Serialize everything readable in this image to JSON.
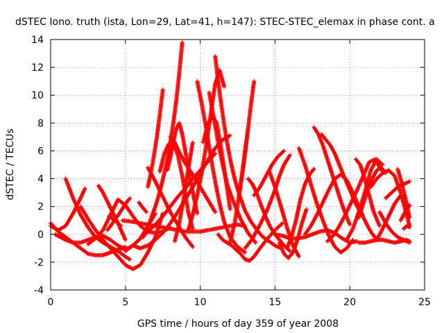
{
  "chart_data": {
    "type": "scatter",
    "title": "dSTEC Iono. truth (ista, Lon=29, Lat=41, h=147): STEC-STEC_elemax in phase cont. a",
    "xlabel": "GPS time / hours of day 359 of year 2008",
    "ylabel": "dSTEC  / TECUs",
    "xlim": [
      0,
      25
    ],
    "ylim": [
      -4,
      14
    ],
    "xticks": [
      0,
      5,
      10,
      15,
      20,
      25
    ],
    "yticks": [
      -4,
      -2,
      0,
      2,
      4,
      6,
      8,
      10,
      12,
      14
    ],
    "grid": true,
    "marker": "+",
    "color": "#ff0000",
    "series": [
      {
        "x": [
          0.0,
          0.5,
          1.0,
          1.5,
          2.0,
          2.5,
          3.0,
          3.5,
          4.0,
          4.5,
          5.0
        ],
        "values": [
          0.8,
          0.2,
          -0.2,
          -0.6,
          -1.0,
          -1.4,
          -1.5,
          -1.5,
          -1.3,
          -1.1,
          -0.9
        ]
      },
      {
        "x": [
          0.0,
          0.5,
          1.0,
          1.5,
          2.0,
          2.3
        ],
        "values": [
          0.6,
          0.3,
          0.6,
          1.5,
          2.6,
          3.3
        ]
      },
      {
        "x": [
          1.0,
          1.5,
          2.0,
          2.5,
          3.0,
          3.5,
          4.0,
          4.5,
          5.0,
          5.3
        ],
        "values": [
          4.0,
          2.6,
          1.4,
          0.5,
          -0.2,
          -0.6,
          -0.9,
          -1.2,
          -1.6,
          -1.8
        ]
      },
      {
        "x": [
          0.3,
          1.0,
          1.5,
          2.0,
          2.5,
          3.0,
          3.5,
          4.0,
          4.5,
          5.0,
          5.5,
          6.0,
          6.5,
          7.0
        ],
        "values": [
          0.0,
          -0.4,
          -0.6,
          -0.6,
          -0.4,
          -0.2,
          -0.1,
          -0.4,
          -0.8,
          -1.1,
          -0.8,
          -0.3,
          0.6,
          1.5
        ]
      },
      {
        "x": [
          2.0,
          2.5,
          3.0,
          3.5,
          4.0,
          4.5,
          5.0,
          5.5,
          6.0,
          6.5,
          7.0,
          7.5
        ],
        "values": [
          2.0,
          1.1,
          0.3,
          -0.4,
          -1.0,
          -1.6,
          -2.2,
          -2.5,
          -2.2,
          -1.3,
          -0.2,
          1.5
        ]
      },
      {
        "x": [
          3.2,
          3.5,
          4.0,
          4.5,
          5.0
        ],
        "values": [
          3.5,
          3.0,
          1.9,
          0.8,
          -0.4
        ]
      },
      {
        "x": [
          2.5,
          3.0,
          3.5,
          4.0,
          4.5,
          5.0,
          5.5,
          6.0,
          6.5,
          7.0,
          7.5,
          8.0
        ],
        "values": [
          -0.7,
          -0.3,
          0.3,
          1.4,
          2.5,
          2.1,
          1.3,
          0.6,
          0.2,
          0.1,
          0.2,
          0.5
        ]
      },
      {
        "x": [
          3.8,
          4.2,
          4.6,
          5.0,
          5.3
        ],
        "values": [
          0.3,
          0.9,
          1.5,
          2.2,
          2.6
        ]
      },
      {
        "x": [
          3.9,
          4.3,
          4.7
        ],
        "values": [
          1.3,
          1.0,
          0.6
        ]
      },
      {
        "x": [
          4.8,
          5.5,
          6.0,
          6.5,
          7.0,
          7.5,
          8.0,
          8.5,
          9.0,
          9.5,
          10.0,
          10.5,
          11.0,
          11.5,
          12.0,
          12.5,
          13.0
        ],
        "values": [
          1.0,
          0.9,
          0.8,
          0.7,
          0.6,
          0.5,
          0.4,
          0.3,
          0.2,
          0.2,
          0.2,
          0.3,
          0.4,
          0.5,
          0.6,
          0.7,
          0.6
        ]
      },
      {
        "x": [
          5.0,
          5.5,
          6.0,
          6.5,
          7.0,
          7.5,
          8.0,
          8.5,
          9.0,
          9.5,
          10.0,
          10.5,
          11.0
        ],
        "values": [
          -1.2,
          -0.8,
          -0.3,
          0.2,
          0.7,
          1.3,
          2.0,
          2.7,
          3.3,
          4.0,
          4.6,
          5.2,
          5.8
        ]
      },
      {
        "x": [
          5.5,
          6.0,
          6.5,
          7.0,
          7.5,
          8.0,
          8.5,
          9.0,
          9.5,
          10.0,
          10.5,
          11.0,
          11.5,
          12.0
        ],
        "values": [
          -0.8,
          -1.0,
          -0.8,
          -0.4,
          0.1,
          0.8,
          1.6,
          2.5,
          3.4,
          4.4,
          5.3,
          6.2,
          6.8,
          7.1
        ]
      },
      {
        "x": [
          5.9,
          6.1,
          6.4
        ],
        "values": [
          2.3,
          2.0,
          1.6
        ]
      },
      {
        "x": [
          6.2,
          6.4,
          6.6,
          6.8,
          7.0,
          7.2,
          7.4,
          7.6,
          7.8,
          8.0,
          8.2,
          8.4,
          8.6,
          8.8
        ],
        "values": [
          -0.2,
          0.3,
          0.8,
          1.4,
          2.0,
          2.7,
          3.5,
          4.4,
          5.4,
          6.6,
          8.0,
          9.6,
          11.6,
          13.8
        ]
      },
      {
        "x": [
          6.5,
          6.7,
          6.9,
          7.1,
          7.3,
          7.5
        ],
        "values": [
          3.4,
          4.4,
          5.6,
          7.0,
          8.6,
          10.4
        ]
      },
      {
        "x": [
          6.5,
          7.0,
          7.5,
          8.0,
          8.5,
          9.0,
          9.5
        ],
        "values": [
          4.8,
          3.8,
          2.7,
          1.6,
          0.7,
          -0.2,
          -0.9
        ]
      },
      {
        "x": [
          7.3,
          7.6,
          7.9,
          8.2,
          8.5,
          8.8,
          9.0,
          9.2,
          9.5
        ],
        "values": [
          4.5,
          5.8,
          6.5,
          6.6,
          5.7,
          4.2,
          3.0,
          1.6,
          0.4
        ]
      },
      {
        "x": [
          7.8,
          8.0,
          8.2,
          8.4,
          8.6,
          8.8,
          9.0,
          9.2,
          9.4,
          9.6,
          9.8
        ],
        "values": [
          4.6,
          5.5,
          6.6,
          7.6,
          8.0,
          7.2,
          6.0,
          4.8,
          3.6,
          2.5,
          1.5
        ]
      },
      {
        "x": [
          8.0,
          8.3,
          8.6,
          9.0,
          9.5,
          10.0,
          10.5,
          11.0
        ],
        "values": [
          7.0,
          6.6,
          5.9,
          5.1,
          4.3,
          3.4,
          2.5,
          1.6
        ]
      },
      {
        "x": [
          8.3,
          8.6,
          8.9,
          9.2,
          9.5
        ],
        "values": [
          -0.5,
          0.8,
          2.6,
          4.7,
          6.6
        ]
      },
      {
        "x": [
          9.2,
          9.5,
          9.8,
          10.1,
          10.4,
          10.7,
          11.0,
          11.3,
          11.6
        ],
        "values": [
          0.3,
          1.4,
          2.8,
          4.4,
          6.4,
          8.6,
          10.8,
          11.8,
          10.6
        ]
      },
      {
        "x": [
          9.8,
          10.1,
          10.4,
          10.7,
          11.0,
          11.3,
          11.6,
          12.0,
          12.5,
          13.0
        ],
        "values": [
          11.0,
          9.4,
          7.6,
          5.6,
          3.8,
          2.2,
          0.9,
          -0.2,
          -0.9,
          -1.3
        ]
      },
      {
        "x": [
          10.2,
          10.5,
          10.8,
          11.1,
          11.4,
          11.7,
          12.0
        ],
        "values": [
          6.6,
          7.9,
          8.5,
          8.0,
          6.2,
          4.0,
          1.8
        ]
      },
      {
        "x": [
          10.6,
          10.9,
          11.2,
          11.5,
          11.8,
          12.2,
          12.7,
          13.2,
          13.7
        ],
        "values": [
          10.2,
          8.4,
          6.6,
          5.0,
          3.6,
          2.4,
          1.1,
          0.1,
          -0.6
        ]
      },
      {
        "x": [
          11.0,
          11.2,
          11.4,
          11.6,
          11.8,
          12.0,
          12.3,
          12.6,
          13.0,
          13.4,
          13.8,
          14.2,
          14.6,
          15.0,
          15.4
        ],
        "values": [
          12.8,
          11.0,
          9.4,
          7.9,
          6.6,
          5.4,
          4.0,
          2.9,
          1.7,
          0.9,
          0.3,
          -0.2,
          -0.5,
          -0.8,
          -1.0
        ]
      },
      {
        "x": [
          11.2,
          11.5,
          11.8,
          12.1,
          12.4,
          12.7,
          13.0,
          13.3,
          13.6,
          14.0,
          14.5,
          15.0,
          15.5
        ],
        "values": [
          0.0,
          -0.4,
          -0.6,
          -0.8,
          -1.1,
          -1.4,
          -1.8,
          -1.9,
          -1.6,
          -1.0,
          -0.3,
          0.3,
          0.8
        ]
      },
      {
        "x": [
          12.0,
          12.3,
          12.6,
          12.9,
          13.2
        ],
        "values": [
          -0.6,
          0.8,
          2.8,
          5.2,
          7.6
        ]
      },
      {
        "x": [
          12.6,
          12.8,
          13.0,
          13.2,
          13.4,
          13.6
        ],
        "values": [
          2.8,
          4.2,
          5.8,
          7.6,
          9.4,
          11.0
        ]
      },
      {
        "x": [
          13.2,
          13.5,
          13.8,
          14.1,
          14.4,
          14.7,
          15.0,
          15.3,
          15.6,
          16.0
        ],
        "values": [
          4.0,
          3.6,
          2.9,
          2.0,
          1.2,
          0.5,
          0.0,
          -0.4,
          -0.8,
          -1.2
        ]
      },
      {
        "x": [
          13.0,
          13.5,
          14.0,
          14.5,
          15.0,
          15.3,
          15.6,
          16.0
        ],
        "values": [
          -1.0,
          -0.3,
          0.7,
          1.8,
          3.2,
          4.2,
          5.0,
          5.7
        ]
      },
      {
        "x": [
          13.6,
          14.0,
          14.4,
          14.8,
          15.2,
          15.6
        ],
        "values": [
          2.8,
          3.4,
          4.2,
          5.0,
          5.6,
          6.0
        ]
      },
      {
        "x": [
          14.6,
          15.0,
          15.4,
          15.8,
          16.2,
          16.6
        ],
        "values": [
          4.6,
          3.4,
          2.0,
          0.5,
          -0.8,
          -1.6
        ]
      },
      {
        "x": [
          15.3,
          15.6,
          15.9,
          16.2,
          16.5,
          16.8,
          17.1
        ],
        "values": [
          -0.6,
          -1.4,
          -1.7,
          -1.3,
          -0.4,
          0.8,
          1.8
        ]
      },
      {
        "x": [
          15.8,
          16.1,
          16.4,
          16.7,
          17.0,
          17.3,
          17.6
        ],
        "values": [
          -1.0,
          -0.2,
          1.0,
          2.5,
          3.6,
          4.3,
          4.7
        ]
      },
      {
        "x": [
          15.0,
          15.5,
          16.0,
          16.5,
          17.0,
          17.5,
          18.0,
          18.5,
          19.0,
          19.5,
          20.0,
          20.5
        ],
        "values": [
          0.0,
          -0.1,
          -0.3,
          -0.3,
          -0.2,
          0.0,
          0.2,
          0.3,
          0.1,
          -0.3,
          -0.6,
          -0.5
        ]
      },
      {
        "x": [
          16.6,
          17.0,
          17.4,
          17.8,
          18.2,
          18.6,
          19.0,
          19.4,
          19.8,
          20.2
        ],
        "values": [
          6.2,
          5.0,
          3.6,
          2.2,
          1.0,
          -0.1,
          -0.9,
          -1.3,
          -1.0,
          -0.4
        ]
      },
      {
        "x": [
          17.6,
          17.9,
          18.2,
          18.5,
          18.8,
          19.1,
          19.4,
          19.7,
          20.0
        ],
        "values": [
          7.7,
          7.2,
          6.4,
          5.4,
          4.4,
          3.4,
          2.4,
          1.5,
          0.7
        ]
      },
      {
        "x": [
          18.1,
          18.4,
          18.7,
          19.0,
          19.3,
          19.6,
          20.0,
          20.4,
          20.8
        ],
        "values": [
          7.2,
          6.8,
          6.4,
          5.8,
          5.0,
          4.2,
          3.2,
          2.2,
          1.4
        ]
      },
      {
        "x": [
          17.0,
          17.4,
          17.8,
          18.2,
          18.6,
          19.0,
          19.4,
          19.8,
          20.2,
          20.6,
          21.0,
          21.4,
          21.8
        ],
        "values": [
          0.0,
          0.6,
          1.4,
          2.3,
          3.2,
          4.0,
          4.3,
          3.9,
          3.0,
          2.0,
          1.0,
          0.2,
          -0.4
        ]
      },
      {
        "x": [
          18.5,
          18.9,
          19.3,
          19.7,
          20.1,
          20.5,
          20.9,
          21.3,
          21.7,
          22.1
        ],
        "values": [
          -0.5,
          -0.1,
          0.6,
          1.4,
          2.3,
          3.2,
          4.2,
          5.2,
          5.4,
          4.6
        ]
      },
      {
        "x": [
          19.8,
          20.2,
          20.6,
          21.0,
          21.4,
          21.8,
          22.2
        ],
        "values": [
          -0.4,
          0.4,
          1.6,
          3.0,
          4.6,
          5.4,
          5.0
        ]
      },
      {
        "x": [
          20.4,
          20.7,
          21.0,
          21.3,
          21.6,
          22.0
        ],
        "values": [
          5.4,
          5.0,
          4.0,
          2.8,
          1.6,
          0.6
        ]
      },
      {
        "x": [
          20.6,
          20.9,
          21.2,
          21.5,
          21.8,
          22.1,
          22.4
        ],
        "values": [
          1.2,
          2.2,
          3.2,
          4.0,
          4.6,
          4.8,
          4.4
        ]
      },
      {
        "x": [
          21.4,
          21.8,
          22.2,
          22.6,
          23.0,
          23.4,
          23.8,
          24.0
        ],
        "values": [
          3.4,
          4.0,
          4.4,
          4.6,
          4.2,
          3.0,
          1.4,
          0.6
        ]
      },
      {
        "x": [
          20.6,
          21.0,
          21.4,
          21.8,
          22.2,
          22.6,
          23.0,
          23.4,
          23.8,
          24.0
        ],
        "values": [
          -0.6,
          -0.6,
          -0.5,
          -0.4,
          -0.4,
          -0.5,
          -0.6,
          -0.5,
          -0.4,
          -0.5
        ]
      },
      {
        "x": [
          22.0,
          22.4,
          22.8,
          23.2,
          23.6,
          24.0
        ],
        "values": [
          1.6,
          0.8,
          0.2,
          -0.2,
          -0.4,
          -0.6
        ]
      },
      {
        "x": [
          22.4,
          22.8,
          23.2,
          23.6,
          24.0
        ],
        "values": [
          2.6,
          3.0,
          3.4,
          3.6,
          3.8
        ]
      },
      {
        "x": [
          23.2,
          23.5,
          23.8,
          24.0
        ],
        "values": [
          4.7,
          3.6,
          2.2,
          1.2
        ]
      },
      {
        "x": [
          23.4,
          23.7,
          24.0
        ],
        "values": [
          1.0,
          1.6,
          2.1
        ]
      },
      {
        "x": [
          21.8,
          22.2,
          22.6,
          23.0,
          23.4
        ],
        "values": [
          -0.4,
          0.4,
          1.3,
          2.2,
          2.8
        ]
      },
      {
        "x": [
          23.6,
          23.8,
          24.0
        ],
        "values": [
          0.4,
          0.6,
          0.5
        ]
      }
    ]
  }
}
